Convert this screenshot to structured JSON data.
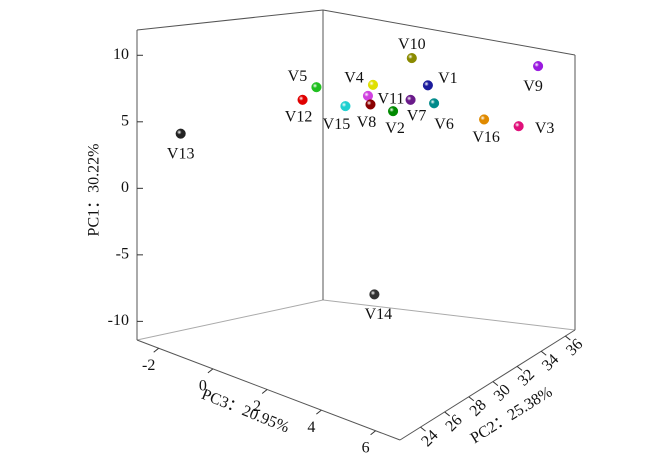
{
  "chart_data": {
    "type": "scatter3d",
    "xlabel": "PC3：20.95%",
    "ylabel": "PC2：25.38%",
    "zlabel": "PC1：30.22%",
    "xlim": [
      -2.8,
      6.9
    ],
    "ylim": [
      22.3,
      36.8
    ],
    "zlim": [
      -11.4,
      11.9
    ],
    "xticks": [
      -2,
      0,
      2,
      4,
      6
    ],
    "yticks": [
      24,
      26,
      28,
      30,
      32,
      34,
      36
    ],
    "zticks": [
      -10,
      -5,
      0,
      5,
      10
    ],
    "points": [
      {
        "name": "V10",
        "color": "#8a8a00",
        "x": 3.0,
        "y": 31.8,
        "z": 10.8
      },
      {
        "name": "V1",
        "color": "#1c1c9c",
        "x": 3.0,
        "y": 33.1,
        "z": 8.5
      },
      {
        "name": "V7",
        "color": "#6a1a8a",
        "x": 3.0,
        "y": 31.7,
        "z": 7.6
      },
      {
        "name": "V6",
        "color": "#008a8a",
        "x": 3.0,
        "y": 33.6,
        "z": 7.0
      },
      {
        "name": "V9",
        "color": "#9a1ae0",
        "x": 5.9,
        "y": 35.9,
        "z": 10.7
      },
      {
        "name": "V3",
        "color": "#e0107a",
        "x": 5.9,
        "y": 34.3,
        "z": 6.1
      },
      {
        "name": "V16",
        "color": "#e08a00",
        "x": 5.0,
        "y": 33.4,
        "z": 6.5
      },
      {
        "name": "V4",
        "color": "#e0e000",
        "x": 1.1,
        "y": 32.7,
        "z": 7.9
      },
      {
        "name": "V11",
        "color": "#d040e0",
        "x": 1.1,
        "y": 32.3,
        "z": 7.1
      },
      {
        "name": "V8",
        "color": "#8a0000",
        "x": 1.1,
        "y": 32.5,
        "z": 6.4
      },
      {
        "name": "V2",
        "color": "#008a00",
        "x": 2.1,
        "y": 32.2,
        "z": 6.3
      },
      {
        "name": "V15",
        "color": "#20d0d0",
        "x": 1.1,
        "y": 30.5,
        "z": 6.6
      },
      {
        "name": "V5",
        "color": "#20c020",
        "x": 0.1,
        "y": 30.3,
        "z": 7.7
      },
      {
        "name": "V12",
        "color": "#e00000",
        "x": 0.1,
        "y": 29.2,
        "z": 6.9
      },
      {
        "name": "V13",
        "color": "#222222",
        "x": -1.8,
        "y": 23.6,
        "z": 4.4
      },
      {
        "name": "V14",
        "color": "#333333",
        "x": 2.1,
        "y": 30.7,
        "z": -7.4
      }
    ]
  }
}
